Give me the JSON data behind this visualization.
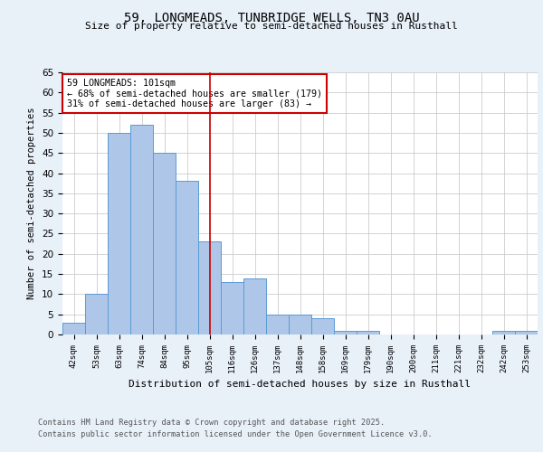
{
  "title1": "59, LONGMEADS, TUNBRIDGE WELLS, TN3 0AU",
  "title2": "Size of property relative to semi-detached houses in Rusthall",
  "xlabel": "Distribution of semi-detached houses by size in Rusthall",
  "ylabel": "Number of semi-detached properties",
  "categories": [
    "42sqm",
    "53sqm",
    "63sqm",
    "74sqm",
    "84sqm",
    "95sqm",
    "105sqm",
    "116sqm",
    "126sqm",
    "137sqm",
    "148sqm",
    "158sqm",
    "169sqm",
    "179sqm",
    "190sqm",
    "200sqm",
    "211sqm",
    "221sqm",
    "232sqm",
    "242sqm",
    "253sqm"
  ],
  "values": [
    3,
    10,
    50,
    52,
    45,
    38,
    23,
    13,
    14,
    5,
    5,
    4,
    1,
    1,
    0,
    0,
    0,
    0,
    0,
    1,
    1
  ],
  "bar_color": "#aec6e8",
  "bar_edge_color": "#5b9bd5",
  "property_line_x": 6.0,
  "annotation_text": "59 LONGMEADS: 101sqm\n← 68% of semi-detached houses are smaller (179)\n31% of semi-detached houses are larger (83) →",
  "annotation_box_color": "#cc0000",
  "ylim": [
    0,
    65
  ],
  "yticks": [
    0,
    5,
    10,
    15,
    20,
    25,
    30,
    35,
    40,
    45,
    50,
    55,
    60,
    65
  ],
  "footer1": "Contains HM Land Registry data © Crown copyright and database right 2025.",
  "footer2": "Contains public sector information licensed under the Open Government Licence v3.0.",
  "bg_color": "#e8f0f8",
  "plot_bg_color": "#ffffff"
}
